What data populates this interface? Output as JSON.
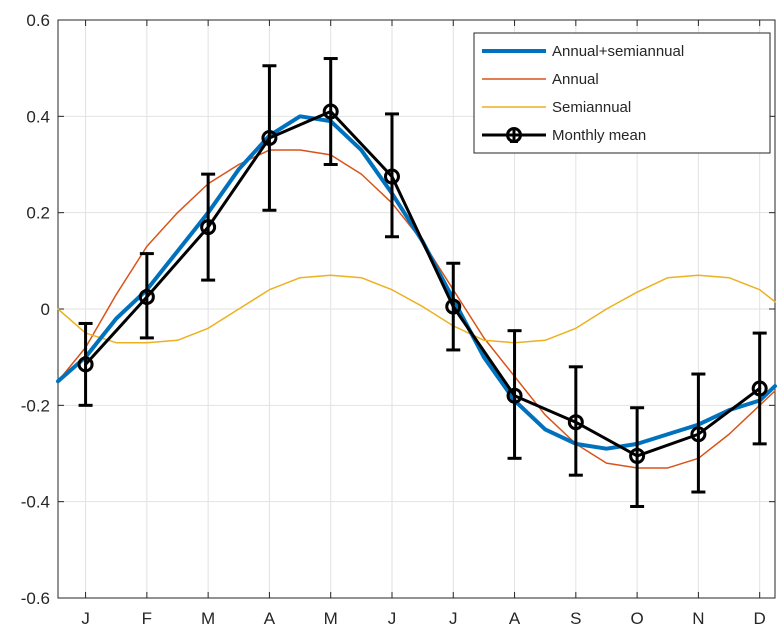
{
  "chart_data": {
    "type": "line",
    "title": "",
    "xlabel": "",
    "ylabel": "",
    "categories": [
      "J",
      "F",
      "M",
      "A",
      "M",
      "J",
      "J",
      "A",
      "S",
      "O",
      "N",
      "D"
    ],
    "xlim": [
      0.55,
      12.25
    ],
    "ylim": [
      -0.6,
      0.6
    ],
    "yticks": [
      0.6,
      0.4,
      0.2,
      0,
      -0.2,
      -0.4,
      -0.6
    ],
    "ytick_labels": [
      "0.6",
      "0.4",
      "0.2",
      "0",
      "-0.2",
      "-0.4",
      "-0.6"
    ],
    "grid": true,
    "legend_position": "top-right",
    "model": {
      "annual_amplitude": 0.33,
      "annual_peak_month": 4.5,
      "semiannual_amplitude": 0.072,
      "semiannual_peak_month": 4.5
    },
    "series": [
      {
        "name": "Annual+semiannual",
        "kind": "fit",
        "color": "#0072BD",
        "x": [
          0.55,
          1,
          1.5,
          2,
          2.5,
          3,
          3.5,
          4,
          4.5,
          5,
          5.5,
          6,
          6.5,
          7,
          7.5,
          8,
          8.5,
          9,
          9.5,
          10,
          10.5,
          11,
          11.5,
          12,
          12.25
        ],
        "values": [
          -0.15,
          -0.1,
          -0.02,
          0.04,
          0.12,
          0.2,
          0.29,
          0.36,
          0.4,
          0.39,
          0.33,
          0.24,
          0.14,
          0.02,
          -0.1,
          -0.19,
          -0.25,
          -0.28,
          -0.29,
          -0.28,
          -0.26,
          -0.24,
          -0.21,
          -0.19,
          -0.16
        ]
      },
      {
        "name": "Annual",
        "kind": "component",
        "color": "#D95319",
        "x": [
          0.55,
          1,
          1.5,
          2,
          2.5,
          3,
          3.5,
          4,
          4.5,
          5,
          5.5,
          6,
          6.5,
          7,
          7.5,
          8,
          8.5,
          9,
          9.5,
          10,
          10.5,
          11,
          11.5,
          12,
          12.25
        ],
        "values": [
          -0.15,
          -0.08,
          0.03,
          0.13,
          0.2,
          0.26,
          0.3,
          0.33,
          0.33,
          0.32,
          0.28,
          0.22,
          0.14,
          0.04,
          -0.06,
          -0.14,
          -0.22,
          -0.28,
          -0.32,
          -0.33,
          -0.33,
          -0.31,
          -0.26,
          -0.2,
          -0.17
        ]
      },
      {
        "name": "Semiannual",
        "kind": "component",
        "color": "#EDB120",
        "x": [
          0.55,
          1,
          1.5,
          2,
          2.5,
          3,
          3.5,
          4,
          4.5,
          5,
          5.5,
          6,
          6.5,
          7,
          7.5,
          8,
          8.5,
          9,
          9.5,
          10,
          10.5,
          11,
          11.5,
          12,
          12.25
        ],
        "values": [
          0.0,
          -0.05,
          -0.07,
          -0.07,
          -0.065,
          -0.04,
          0.0,
          0.04,
          0.065,
          0.07,
          0.065,
          0.04,
          0.005,
          -0.035,
          -0.065,
          -0.07,
          -0.065,
          -0.04,
          0.0,
          0.035,
          0.065,
          0.07,
          0.065,
          0.04,
          0.015
        ]
      },
      {
        "name": "Monthly mean",
        "kind": "observed",
        "color": "#000000",
        "x": [
          1,
          2,
          3,
          4,
          5,
          6,
          7,
          8,
          9,
          10,
          11,
          12
        ],
        "values": [
          -0.115,
          0.025,
          0.17,
          0.355,
          0.41,
          0.275,
          0.005,
          -0.18,
          -0.235,
          -0.305,
          -0.26,
          -0.165
        ],
        "err_low": [
          -0.2,
          -0.06,
          0.06,
          0.205,
          0.3,
          0.15,
          -0.085,
          -0.31,
          -0.345,
          -0.41,
          -0.38,
          -0.28
        ],
        "err_high": [
          -0.03,
          0.115,
          0.28,
          0.505,
          0.52,
          0.405,
          0.095,
          -0.045,
          -0.12,
          -0.205,
          -0.135,
          -0.05
        ]
      }
    ]
  }
}
